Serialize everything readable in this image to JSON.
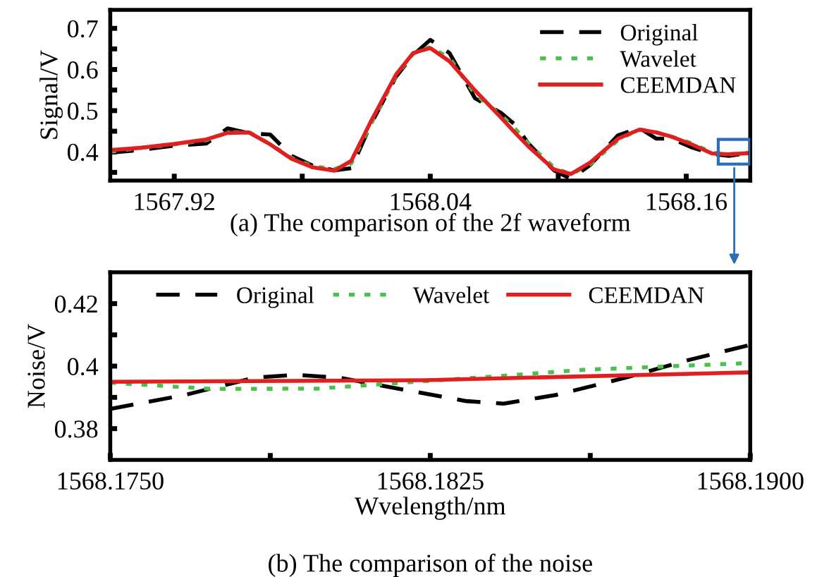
{
  "chart_data": [
    {
      "type": "line",
      "ylabel": "Signal/V",
      "legend": "top right",
      "x": [
        1567.89,
        1567.905,
        1567.92,
        1567.935,
        1567.945,
        1567.955,
        1567.965,
        1567.975,
        1567.985,
        1567.995,
        1568.003,
        1568.012,
        1568.024,
        1568.032,
        1568.04,
        1568.049,
        1568.061,
        1568.073,
        1568.08,
        1568.086,
        1568.098,
        1568.106,
        1568.115,
        1568.128,
        1568.138,
        1568.146,
        1568.153,
        1568.163,
        1568.172,
        1568.18,
        1568.19
      ],
      "series": [
        {
          "name": "Original",
          "color": "#000000",
          "line_style": "dashed",
          "values": [
            0.398,
            0.405,
            0.415,
            0.42,
            0.457,
            0.445,
            0.442,
            0.39,
            0.366,
            0.355,
            0.36,
            0.465,
            0.583,
            0.635,
            0.672,
            0.64,
            0.53,
            0.495,
            0.465,
            0.42,
            0.355,
            0.334,
            0.368,
            0.44,
            0.458,
            0.432,
            0.432,
            0.41,
            0.395,
            0.39,
            0.398
          ]
        },
        {
          "name": "Wavelet",
          "color": "#4cc04c",
          "line_style": "dotted",
          "values": [
            0.4,
            0.41,
            0.418,
            0.428,
            0.447,
            0.448,
            0.418,
            0.385,
            0.365,
            0.358,
            0.372,
            0.465,
            0.585,
            0.638,
            0.655,
            0.628,
            0.54,
            0.49,
            0.455,
            0.42,
            0.362,
            0.345,
            0.37,
            0.428,
            0.455,
            0.447,
            0.437,
            0.42,
            0.398,
            0.394,
            0.397
          ]
        },
        {
          "name": "CEEMDAN",
          "color": "#e02020",
          "line_style": "solid",
          "values": [
            0.404,
            0.41,
            0.419,
            0.43,
            0.446,
            0.447,
            0.418,
            0.383,
            0.362,
            0.354,
            0.378,
            0.472,
            0.588,
            0.64,
            0.652,
            0.62,
            0.549,
            0.484,
            0.445,
            0.413,
            0.357,
            0.346,
            0.374,
            0.432,
            0.454,
            0.447,
            0.437,
            0.417,
            0.396,
            0.394,
            0.397
          ]
        }
      ],
      "xlim": [
        1567.89,
        1568.19
      ],
      "xticks": [
        1567.92,
        {
          "value": 1567.98,
          "label": null
        },
        1568.04,
        {
          "value": 1568.1,
          "label": null
        },
        1568.16
      ],
      "ylim": [
        0.33,
        0.745
      ],
      "yticks": [
        {
          "value": 0.35,
          "label": null
        },
        0.4,
        {
          "value": 0.45,
          "label": null
        },
        0.5,
        {
          "value": 0.55,
          "label": null
        },
        0.6,
        {
          "value": 0.65,
          "label": null
        },
        0.7
      ],
      "annotations": [
        "(a) The comparison of the 2f waveform"
      ]
    },
    {
      "type": "line",
      "xlabel": "Wvelength/nm",
      "ylabel": "Noise/V",
      "legend": "top",
      "series": [
        {
          "name": "Original",
          "color": "#000000",
          "line_style": "dashed",
          "x": [
            1568.175,
            1568.17676,
            1568.17838,
            1568.17937,
            1568.18037,
            1568.18186,
            1568.18335,
            1568.18422,
            1568.18546,
            1568.18708,
            1568.18857,
            1568.19
          ],
          "values": [
            0.3863,
            0.3908,
            0.3963,
            0.3972,
            0.3963,
            0.3925,
            0.3888,
            0.388,
            0.3908,
            0.3963,
            0.402,
            0.4068
          ]
        },
        {
          "name": "Wavelet",
          "color": "#4cc04c",
          "line_style": "dotted",
          "x": [
            1568.175,
            1568.17739,
            1568.17987,
            1568.18186,
            1568.1836,
            1568.18608,
            1568.19
          ],
          "values": [
            0.3947,
            0.3927,
            0.3928,
            0.3947,
            0.3963,
            0.3988,
            0.401
          ]
        },
        {
          "name": "CEEMDAN",
          "color": "#e02020",
          "line_style": "solid",
          "x": [
            1568.175,
            1568.18236,
            1568.19
          ],
          "values": [
            0.395,
            0.3955,
            0.398
          ]
        }
      ],
      "xlim": [
        1568.175,
        1568.19
      ],
      "xticks": [
        {
          "value": 1568.175,
          "label": "1568.1750"
        },
        {
          "value": 1568.17875,
          "label": null
        },
        {
          "value": 1568.1825,
          "label": "1568.1825"
        },
        {
          "value": 1568.18625,
          "label": null
        },
        {
          "value": 1568.19,
          "label": "1568.1900"
        }
      ],
      "ylim": [
        0.37,
        0.43
      ],
      "yticks": [
        0.38,
        {
          "value": 0.39,
          "label": null
        },
        0.4,
        {
          "value": 0.41,
          "label": null
        },
        0.42
      ],
      "annotations": [
        "(b) The comparison of the noise"
      ]
    }
  ]
}
